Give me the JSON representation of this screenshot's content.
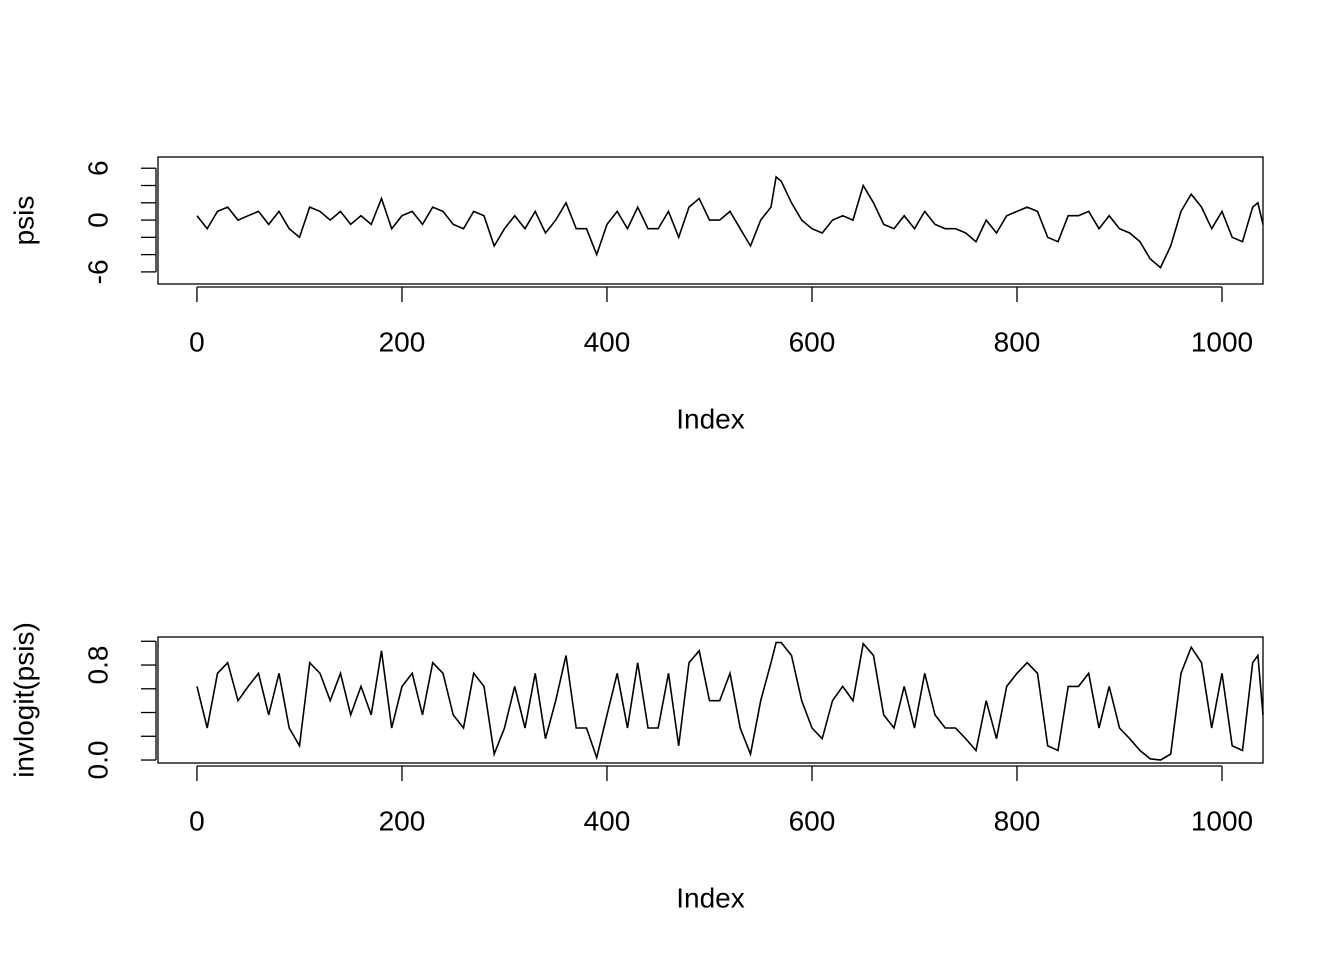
{
  "chart_data": [
    {
      "type": "line",
      "xlabel": "Index",
      "ylabel": "psis",
      "x": [
        0,
        10,
        20,
        30,
        40,
        50,
        60,
        70,
        80,
        90,
        100,
        110,
        120,
        130,
        140,
        150,
        160,
        170,
        180,
        190,
        200,
        210,
        220,
        230,
        240,
        250,
        260,
        270,
        280,
        290,
        300,
        310,
        320,
        330,
        340,
        350,
        360,
        370,
        380,
        390,
        400,
        410,
        420,
        430,
        440,
        450,
        460,
        470,
        480,
        490,
        500,
        510,
        520,
        530,
        540,
        550,
        560,
        565,
        570,
        580,
        590,
        600,
        610,
        620,
        630,
        640,
        650,
        660,
        670,
        680,
        690,
        700,
        710,
        720,
        730,
        740,
        750,
        760,
        770,
        780,
        790,
        800,
        810,
        820,
        830,
        840,
        850,
        860,
        870,
        880,
        890,
        900,
        910,
        920,
        930,
        940,
        950,
        960,
        970,
        980,
        990,
        1000,
        1010,
        1020,
        1030,
        1035,
        1040
      ],
      "series": [
        {
          "color": "#000000",
          "values": [
            0.5,
            -1,
            1,
            1.5,
            0,
            0.5,
            1,
            -0.5,
            1,
            -1,
            -2,
            1.5,
            1,
            0,
            1,
            -0.5,
            0.5,
            -0.5,
            2.5,
            -1,
            0.5,
            1,
            -0.5,
            1.5,
            1,
            -0.5,
            -1,
            1,
            0.5,
            -3,
            -1,
            0.5,
            -1,
            1,
            -1.5,
            0,
            2,
            -1,
            -1,
            -4,
            -0.5,
            1,
            -1,
            1.5,
            -1,
            -1,
            1,
            -2,
            1.5,
            2.5,
            0,
            0,
            1,
            -1,
            -3,
            0,
            1.5,
            5,
            4.5,
            2,
            0,
            -1,
            -1.5,
            0,
            0.5,
            0,
            4,
            2,
            -0.5,
            -1,
            0.5,
            -1,
            1,
            -0.5,
            -1,
            -1,
            -1.5,
            -2.5,
            0,
            -1.5,
            0.5,
            1,
            1.5,
            1,
            -2,
            -2.5,
            0.5,
            0.5,
            1,
            -1,
            0.5,
            -1,
            -1.5,
            -2.5,
            -4.5,
            -5.5,
            -3,
            1,
            3,
            1.5,
            -1,
            1,
            -2,
            -2.5,
            1.5,
            2,
            -0.5
          ]
        }
      ],
      "xlim": [
        -38,
        1040
      ],
      "xticks": [
        0,
        200,
        400,
        600,
        800,
        1000
      ],
      "ylim": [
        -7.4,
        7.3
      ],
      "yticks": [
        -6,
        0,
        6
      ],
      "yticks_unlabeled": [
        -4,
        -2,
        2,
        4
      ]
    },
    {
      "type": "line",
      "xlabel": "Index",
      "ylabel": "invlogit(psis)",
      "x": [
        0,
        10,
        20,
        30,
        40,
        50,
        60,
        70,
        80,
        90,
        100,
        110,
        120,
        130,
        140,
        150,
        160,
        170,
        180,
        190,
        200,
        210,
        220,
        230,
        240,
        250,
        260,
        270,
        280,
        290,
        300,
        310,
        320,
        330,
        340,
        350,
        360,
        370,
        380,
        390,
        400,
        410,
        420,
        430,
        440,
        450,
        460,
        470,
        480,
        490,
        500,
        510,
        520,
        530,
        540,
        550,
        560,
        565,
        570,
        580,
        590,
        600,
        610,
        620,
        630,
        640,
        650,
        660,
        670,
        680,
        690,
        700,
        710,
        720,
        730,
        740,
        750,
        760,
        770,
        780,
        790,
        800,
        810,
        820,
        830,
        840,
        850,
        860,
        870,
        880,
        890,
        900,
        910,
        920,
        930,
        940,
        950,
        960,
        970,
        980,
        990,
        1000,
        1010,
        1020,
        1030,
        1035,
        1040
      ],
      "series": [
        {
          "color": "#000000",
          "values": [
            0.62,
            0.27,
            0.73,
            0.82,
            0.5,
            0.62,
            0.73,
            0.38,
            0.73,
            0.27,
            0.12,
            0.82,
            0.73,
            0.5,
            0.73,
            0.38,
            0.62,
            0.38,
            0.92,
            0.27,
            0.62,
            0.73,
            0.38,
            0.82,
            0.73,
            0.38,
            0.27,
            0.73,
            0.62,
            0.05,
            0.27,
            0.62,
            0.27,
            0.73,
            0.18,
            0.5,
            0.88,
            0.27,
            0.27,
            0.02,
            0.38,
            0.73,
            0.27,
            0.82,
            0.27,
            0.27,
            0.73,
            0.12,
            0.82,
            0.92,
            0.5,
            0.5,
            0.73,
            0.27,
            0.05,
            0.5,
            0.82,
            0.99,
            0.99,
            0.88,
            0.5,
            0.27,
            0.18,
            0.5,
            0.62,
            0.5,
            0.98,
            0.88,
            0.38,
            0.27,
            0.62,
            0.27,
            0.73,
            0.38,
            0.27,
            0.27,
            0.18,
            0.08,
            0.5,
            0.18,
            0.62,
            0.73,
            0.82,
            0.73,
            0.12,
            0.08,
            0.62,
            0.62,
            0.73,
            0.27,
            0.62,
            0.27,
            0.18,
            0.08,
            0.01,
            0.0,
            0.05,
            0.73,
            0.95,
            0.82,
            0.27,
            0.73,
            0.12,
            0.08,
            0.82,
            0.88,
            0.38
          ]
        }
      ],
      "xlim": [
        -38,
        1040
      ],
      "xticks": [
        0,
        200,
        400,
        600,
        800,
        1000
      ],
      "ylim": [
        -0.025,
        1.036
      ],
      "yticks": [
        {
          "value": 0,
          "label": "0.0"
        },
        {
          "value": 0.8,
          "label": "0.8"
        }
      ],
      "yticks_unlabeled": [
        0.2,
        0.4,
        0.6,
        1.0
      ]
    }
  ]
}
